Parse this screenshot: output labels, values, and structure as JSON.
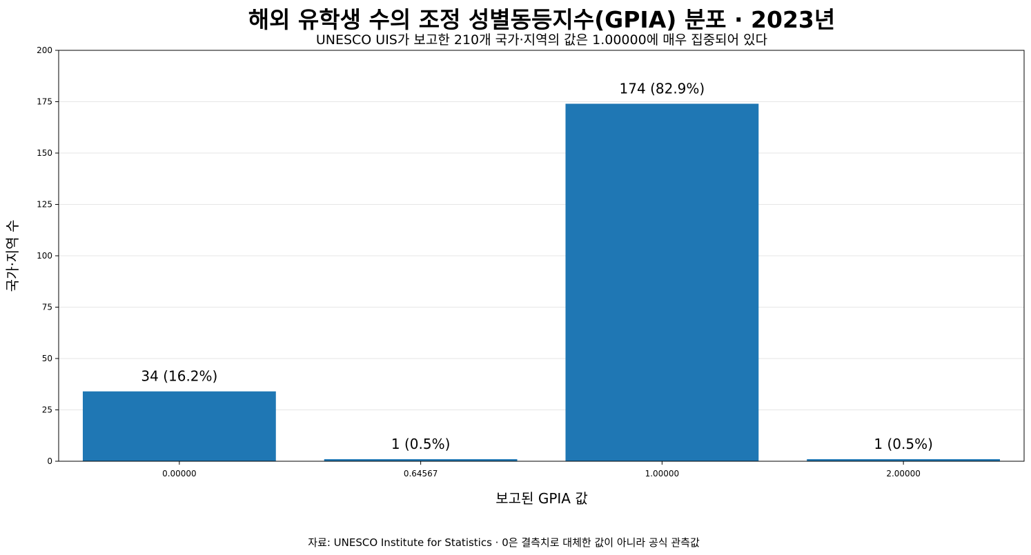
{
  "chart_data": {
    "type": "bar",
    "title": "해외 유학생 수의 조정 성별동등지수(GPIA) 분포 · 2023년",
    "subtitle": "UNESCO UIS가 보고한 210개 국가·지역의 값은 1.00000에 매우 집중되어 있다",
    "xlabel": "보고된 GPIA 값",
    "ylabel": "국가·지역 수",
    "categories": [
      "0.00000",
      "0.64567",
      "1.00000",
      "2.00000"
    ],
    "values": [
      34,
      1,
      174,
      1
    ],
    "data_labels": [
      "34  (16.2%)",
      "1  (0.5%)",
      "174  (82.9%)",
      "1  (0.5%)"
    ],
    "ylim": [
      0,
      200
    ],
    "yticks": [
      0,
      25,
      50,
      75,
      100,
      125,
      150,
      175,
      200
    ],
    "grid": "horizontal",
    "bar_color": "#1f77b4",
    "source": "자료: UNESCO Institute for Statistics · 0은 결측치로 대체한 값이 아니라 공식 관측값"
  }
}
